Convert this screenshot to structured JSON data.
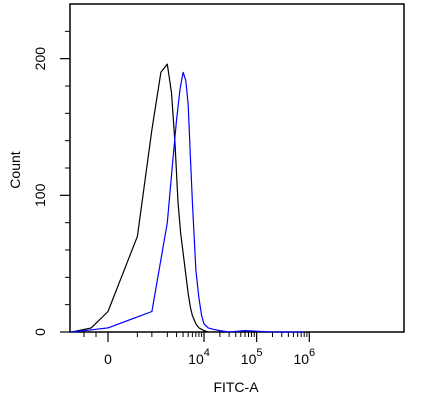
{
  "chart_data": {
    "type": "line",
    "title": "",
    "xlabel": "FITC-A",
    "ylabel": "Count",
    "x_scale": "biexponential",
    "ylim": [
      0,
      240
    ],
    "grid": false,
    "legend": "none",
    "x_ticks": [
      {
        "label": "0",
        "value": 0
      },
      {
        "label": "10",
        "exp": "4",
        "value": 10000
      },
      {
        "label": "10",
        "exp": "5",
        "value": 100000
      },
      {
        "label": "10",
        "exp": "6",
        "value": 1000000
      }
    ],
    "y_ticks": [
      {
        "label": "0",
        "value": 0
      },
      {
        "label": "100",
        "value": 100
      },
      {
        "label": "200",
        "value": 200
      }
    ],
    "series": [
      {
        "color": "#000000",
        "x": [
          -1500,
          -700,
          0,
          500,
          1000,
          1500,
          2000,
          2400,
          2800,
          3200,
          3600,
          4000,
          4500,
          5000,
          5500,
          6000,
          7000,
          8000,
          9000,
          10000,
          12000
        ],
        "y": [
          0,
          3,
          15,
          70,
          148,
          190,
          196,
          175,
          138,
          95,
          72,
          58,
          42,
          28,
          18,
          12,
          6,
          3,
          2,
          1,
          0
        ]
      },
      {
        "color": "#0000ff",
        "x": [
          -1500,
          -500,
          0,
          1000,
          2000,
          2500,
          3000,
          3500,
          4000,
          4500,
          5000,
          5500,
          6000,
          7000,
          8000,
          9000,
          10000,
          12000,
          15000,
          20000,
          30000,
          60000,
          200000,
          800000
        ],
        "y": [
          0,
          2,
          3,
          15,
          80,
          122,
          155,
          178,
          190,
          184,
          166,
          128,
          95,
          45,
          25,
          12,
          6,
          3,
          2,
          1,
          0,
          1,
          0,
          0
        ]
      }
    ]
  }
}
